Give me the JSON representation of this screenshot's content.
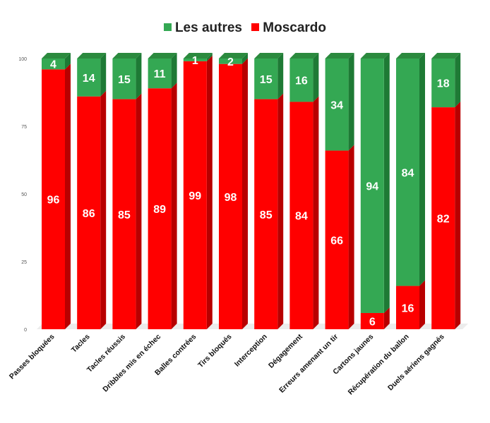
{
  "chart_data": {
    "type": "bar",
    "stacked": true,
    "percent": true,
    "categories": [
      "Passes bloquées",
      "Tacles",
      "Tacles réussis",
      "Dribbles mis en échec",
      "Balles contrées",
      "Tirs bloqués",
      "Interception",
      "Dégagement",
      "Erreurs amenant un tir",
      "Cartons jaunes",
      "Récupération du ballon",
      "Duels aériens gagnés"
    ],
    "series": [
      {
        "name": "Moscardo",
        "values": [
          96,
          86,
          85,
          89,
          99,
          98,
          85,
          84,
          66,
          6,
          16,
          82
        ],
        "color": "#ff0000"
      },
      {
        "name": "Les autres",
        "values": [
          4,
          14,
          15,
          11,
          1,
          2,
          15,
          16,
          34,
          94,
          84,
          18
        ],
        "color": "#34a853"
      }
    ],
    "legend_order": [
      "Les autres",
      "Moscardo"
    ],
    "legend_position": "top",
    "yticks": [
      0,
      25,
      50,
      75,
      100
    ],
    "ylim": [
      0,
      100
    ],
    "grid": false,
    "title": "",
    "xlabel": "",
    "ylabel": ""
  }
}
